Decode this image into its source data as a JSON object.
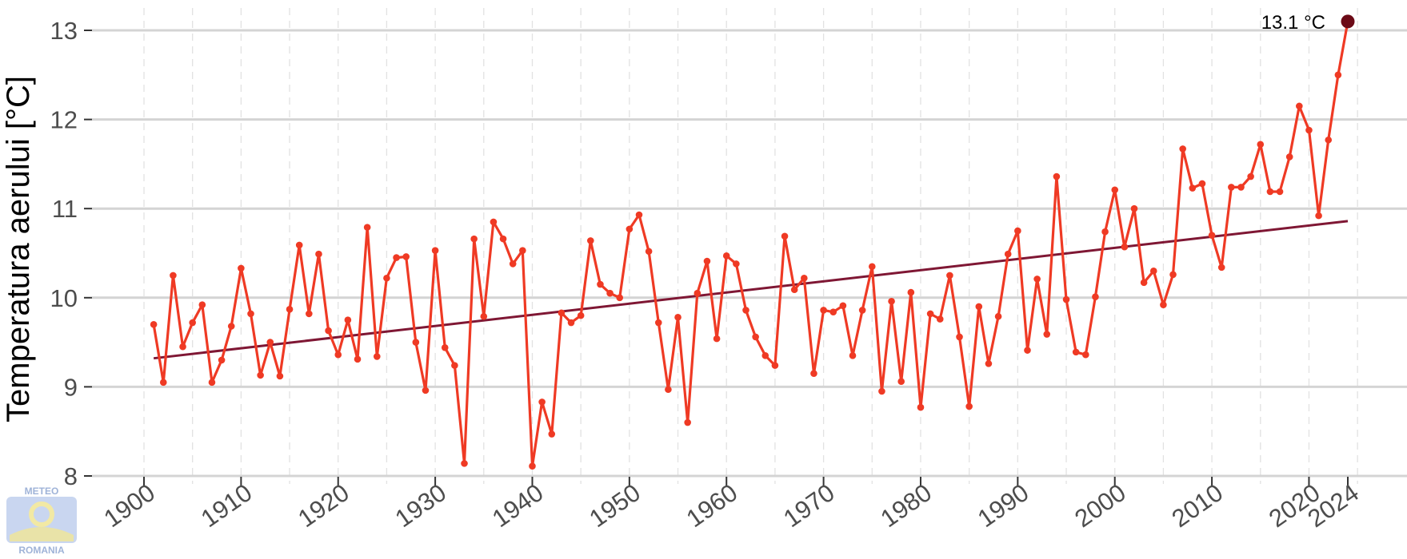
{
  "chart_data": {
    "type": "line",
    "title": "",
    "xlabel": "",
    "ylabel": "Temperatura aerului [°C]",
    "xlim": [
      1900,
      2024
    ],
    "ylim": [
      8,
      13
    ],
    "x_ticks": [
      1900,
      1910,
      1920,
      1930,
      1940,
      1950,
      1960,
      1970,
      1980,
      1990,
      2000,
      2010,
      2020,
      2024
    ],
    "y_ticks": [
      8,
      9,
      10,
      11,
      12,
      13
    ],
    "grid": true,
    "legend": "none",
    "series": [
      {
        "color": "#ef3a24",
        "x": [
          1901,
          1902,
          1903,
          1904,
          1905,
          1906,
          1907,
          1908,
          1909,
          1910,
          1911,
          1912,
          1913,
          1914,
          1915,
          1916,
          1917,
          1918,
          1919,
          1920,
          1921,
          1922,
          1923,
          1924,
          1925,
          1926,
          1927,
          1928,
          1929,
          1930,
          1931,
          1932,
          1933,
          1934,
          1935,
          1936,
          1937,
          1938,
          1939,
          1940,
          1941,
          1942,
          1943,
          1944,
          1945,
          1946,
          1947,
          1948,
          1949,
          1950,
          1951,
          1952,
          1953,
          1954,
          1955,
          1956,
          1957,
          1958,
          1959,
          1960,
          1961,
          1962,
          1963,
          1964,
          1965,
          1966,
          1967,
          1968,
          1969,
          1970,
          1971,
          1972,
          1973,
          1974,
          1975,
          1976,
          1977,
          1978,
          1979,
          1980,
          1981,
          1982,
          1983,
          1984,
          1985,
          1986,
          1987,
          1988,
          1989,
          1990,
          1991,
          1992,
          1993,
          1994,
          1995,
          1996,
          1997,
          1998,
          1999,
          2000,
          2001,
          2002,
          2003,
          2004,
          2005,
          2006,
          2007,
          2008,
          2009,
          2010,
          2011,
          2012,
          2013,
          2014,
          2015,
          2016,
          2017,
          2018,
          2019,
          2020,
          2021,
          2022,
          2023,
          2024
        ],
        "y": [
          9.7,
          9.05,
          10.25,
          9.45,
          9.72,
          9.92,
          9.05,
          9.3,
          9.68,
          10.33,
          9.82,
          9.13,
          9.5,
          9.12,
          9.87,
          10.59,
          9.82,
          10.49,
          9.63,
          9.36,
          9.75,
          9.31,
          10.79,
          9.34,
          10.22,
          10.45,
          10.46,
          9.5,
          8.96,
          10.53,
          9.44,
          9.24,
          8.14,
          10.66,
          9.79,
          10.85,
          10.66,
          10.38,
          10.53,
          8.11,
          8.83,
          8.47,
          9.83,
          9.72,
          9.8,
          10.64,
          10.15,
          10.05,
          10.0,
          10.77,
          10.93,
          10.52,
          9.72,
          8.97,
          9.78,
          8.6,
          10.05,
          10.41,
          9.54,
          10.47,
          10.38,
          9.86,
          9.56,
          9.35,
          9.24,
          10.69,
          10.09,
          10.22,
          9.15,
          9.86,
          9.84,
          9.91,
          9.35,
          9.86,
          10.35,
          8.95,
          9.96,
          9.06,
          10.06,
          8.77,
          9.82,
          9.76,
          10.25,
          9.56,
          8.78,
          9.9,
          9.26,
          9.79,
          10.49,
          10.75,
          9.41,
          10.21,
          9.59,
          11.36,
          9.98,
          9.39,
          9.36,
          10.01,
          10.74,
          11.21,
          10.57,
          11.0,
          10.17,
          10.3,
          9.92,
          10.26,
          11.67,
          11.23,
          11.28,
          10.7,
          10.34,
          11.24,
          11.24,
          11.36,
          11.72,
          11.19,
          11.19,
          11.58,
          12.15,
          11.88,
          10.92,
          11.77,
          12.5,
          13.1
        ]
      }
    ],
    "trend": {
      "color": "#7f1734",
      "x": [
        1901,
        2024
      ],
      "y": [
        9.32,
        10.86
      ]
    },
    "highlight": {
      "x": 2024,
      "y": 13.1,
      "label": "13.1 °C",
      "color": "#6b0a16"
    }
  },
  "logo": {
    "text_top": "METEO",
    "text_bottom": "ROMANIA"
  }
}
